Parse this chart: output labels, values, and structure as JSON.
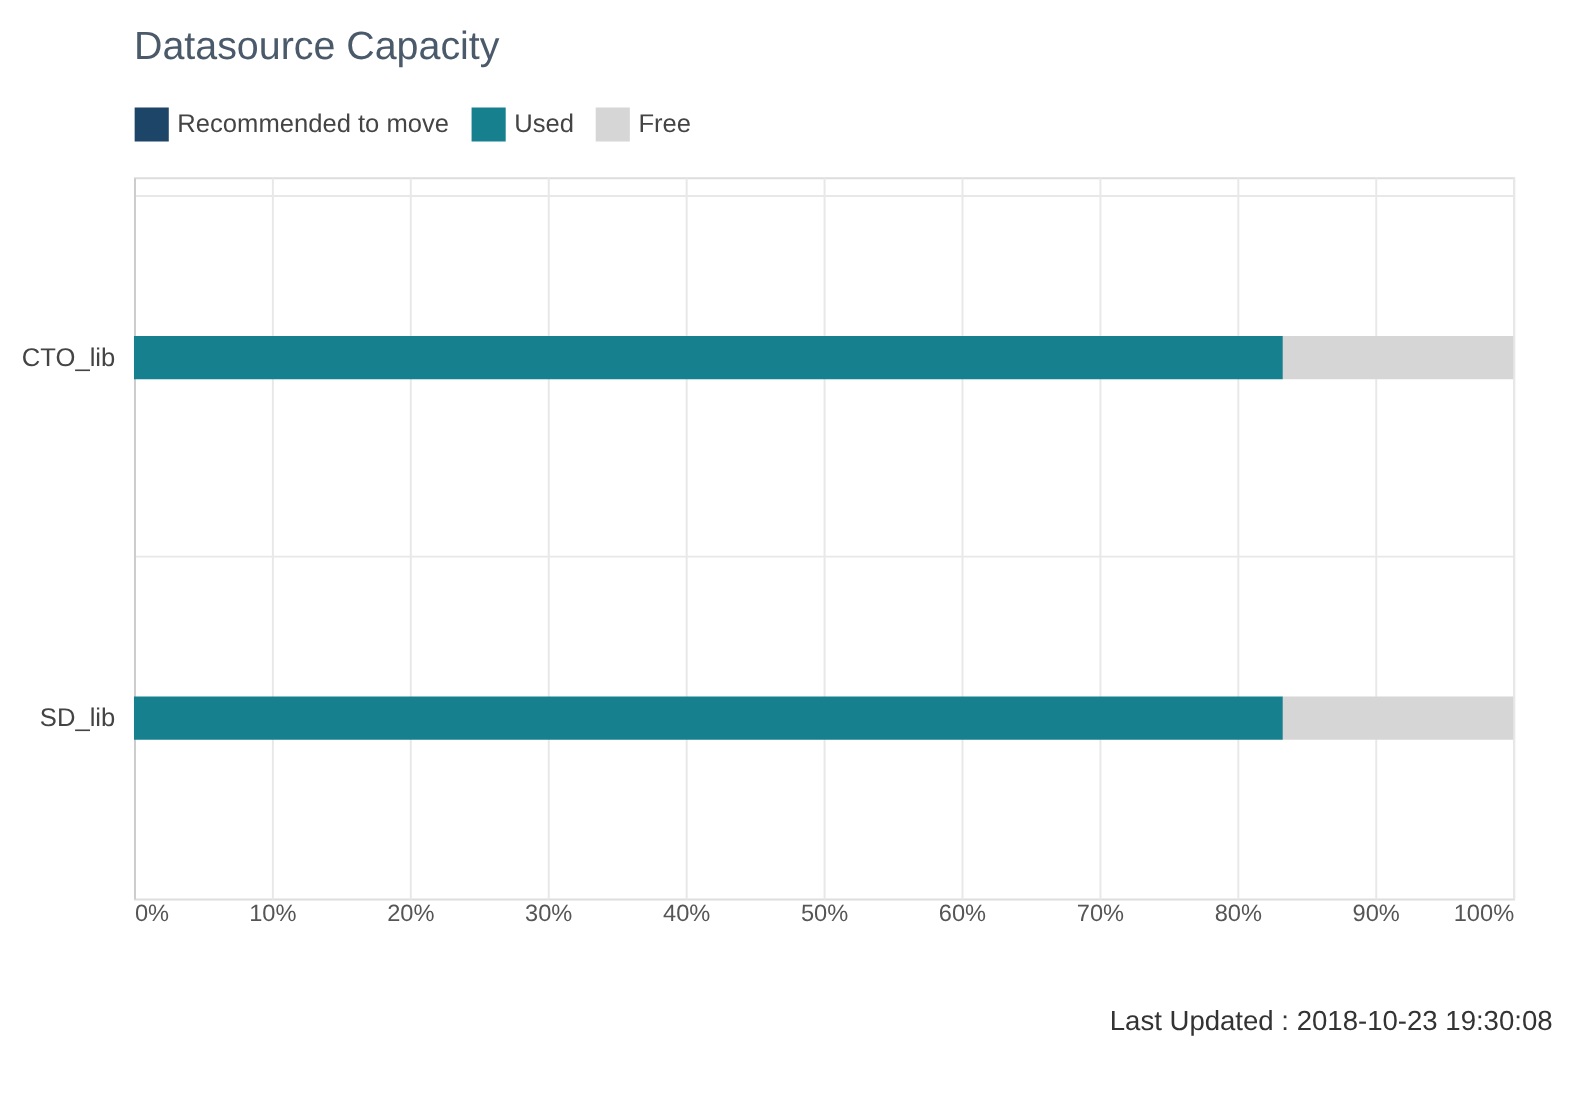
{
  "chart_data": {
    "type": "bar",
    "orientation": "horizontal",
    "stacked": true,
    "title": "Datasource Capacity",
    "categories": [
      "CTO_lib",
      "SD_lib"
    ],
    "series": [
      {
        "name": "Recommended to move",
        "color": "#1d4568",
        "values": [
          0,
          0
        ]
      },
      {
        "name": "Used",
        "color": "#17808e",
        "values": [
          83.3,
          83.3
        ]
      },
      {
        "name": "Free",
        "color": "#d6d6d6",
        "values": [
          16.7,
          16.7
        ]
      }
    ],
    "xlim": [
      0,
      100
    ],
    "xticks": [
      {
        "value": 0,
        "label": "0%"
      },
      {
        "value": 10,
        "label": "10%"
      },
      {
        "value": 20,
        "label": "20%"
      },
      {
        "value": 30,
        "label": "30%"
      },
      {
        "value": 40,
        "label": "40%"
      },
      {
        "value": 50,
        "label": "50%"
      },
      {
        "value": 60,
        "label": "60%"
      },
      {
        "value": 70,
        "label": "70%"
      },
      {
        "value": 80,
        "label": "80%"
      },
      {
        "value": 90,
        "label": "90%"
      },
      {
        "value": 100,
        "label": "100%"
      }
    ],
    "grid": true,
    "legend": "top",
    "annotations": [
      "Last Updated : 2018-10-23 19:30:08"
    ]
  }
}
